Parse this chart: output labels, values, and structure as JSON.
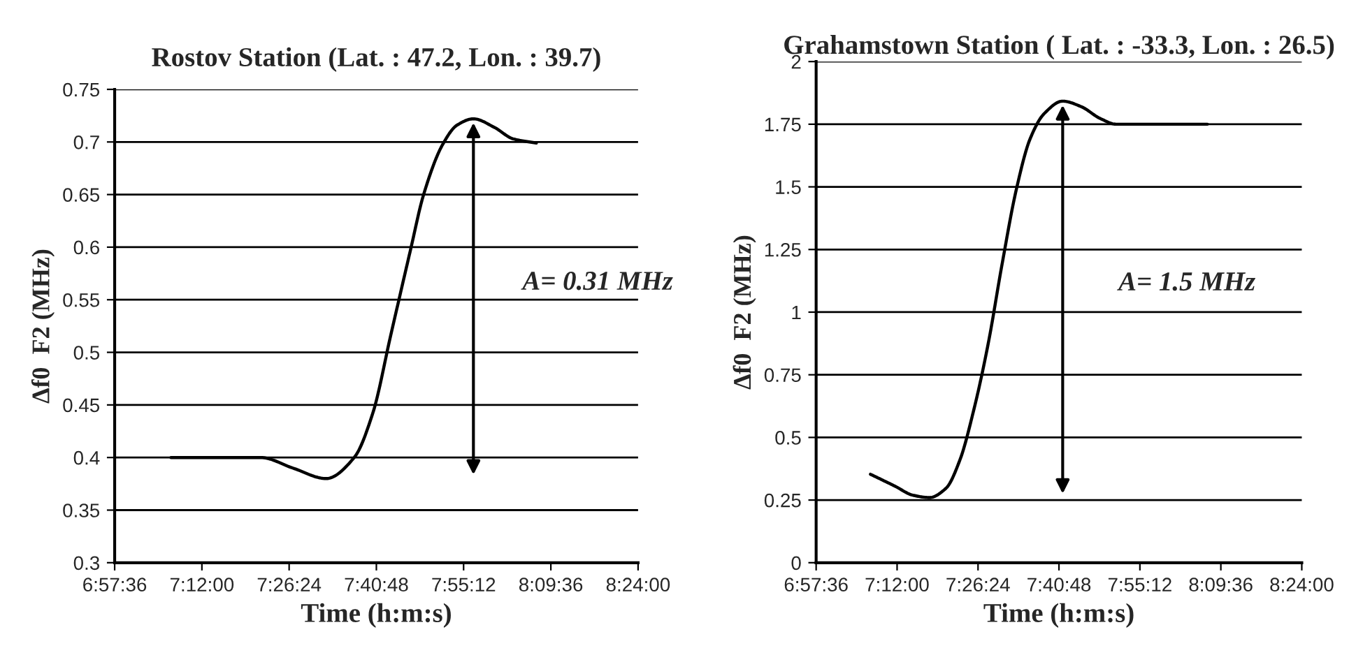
{
  "chart_data": [
    {
      "type": "line",
      "title": "Rostov Station (Lat. : 47.2, Lon. : 39.7)",
      "xlabel": "Time (h:m:s)",
      "ylabel": "∆f0  F2 (MHz)",
      "series": [
        {
          "color": "#000000",
          "x": [
            7.115,
            7.25,
            7.362,
            7.45,
            7.542,
            7.619,
            7.67,
            7.72,
            7.773,
            7.81,
            7.863,
            7.902,
            7.947,
            8.004,
            8.056,
            8.12
          ],
          "values": [
            0.4,
            0.4,
            0.4,
            0.39,
            0.38,
            0.4,
            0.442,
            0.517,
            0.596,
            0.65,
            0.698,
            0.716,
            0.722,
            0.714,
            0.703,
            0.699
          ]
        }
      ],
      "xlim": [
        6.96,
        8.4
      ],
      "xticks": [
        {
          "value": 6.96,
          "label": "6:57:36"
        },
        {
          "value": 7.2,
          "label": "7:12:00"
        },
        {
          "value": 7.44,
          "label": "7:26:24"
        },
        {
          "value": 7.68,
          "label": "7:40:48"
        },
        {
          "value": 7.92,
          "label": "7:55:12"
        },
        {
          "value": 8.16,
          "label": "8:09:36"
        },
        {
          "value": 8.4,
          "label": "8:24:00"
        }
      ],
      "ylim": [
        0.3,
        0.75
      ],
      "yticks": [
        0.3,
        0.35,
        0.4,
        0.45,
        0.5,
        0.55,
        0.6,
        0.65,
        0.7,
        0.75
      ],
      "annotations": [
        "A= 0.31 MHz"
      ],
      "grid": "y",
      "marker": "none",
      "line_style": "solid",
      "legend": false
    },
    {
      "type": "line",
      "title": "Grahamstown Station ( Lat. : -33.3, Lon. : 26.5)",
      "xlabel": "Time (h:m:s)",
      "ylabel": "∆f0  F2 (MHz)",
      "series": [
        {
          "color": "#000000",
          "x": [
            7.121,
            7.193,
            7.248,
            7.296,
            7.345,
            7.386,
            7.428,
            7.47,
            7.511,
            7.553,
            7.594,
            7.636,
            7.691,
            7.746,
            7.802,
            7.85,
            8.12
          ],
          "values": [
            0.353,
            0.306,
            0.269,
            0.26,
            0.297,
            0.409,
            0.613,
            0.873,
            1.189,
            1.486,
            1.69,
            1.792,
            1.842,
            1.82,
            1.773,
            1.75,
            1.75
          ]
        }
      ],
      "xlim": [
        6.96,
        8.4
      ],
      "xticks": [
        {
          "value": 6.96,
          "label": "6:57:36"
        },
        {
          "value": 7.2,
          "label": "7:12:00"
        },
        {
          "value": 7.44,
          "label": "7:26:24"
        },
        {
          "value": 7.68,
          "label": "7:40:48"
        },
        {
          "value": 7.92,
          "label": "7:55:12"
        },
        {
          "value": 8.16,
          "label": "8:09:36"
        },
        {
          "value": 8.4,
          "label": "8:24:00"
        }
      ],
      "ylim": [
        0,
        2
      ],
      "yticks": [
        0,
        0.25,
        0.5,
        0.75,
        1,
        1.25,
        1.5,
        1.75,
        2
      ],
      "annotations": [
        "A= 1.5 MHz"
      ],
      "grid": "y",
      "marker": "none",
      "line_style": "solid",
      "legend": false
    }
  ]
}
